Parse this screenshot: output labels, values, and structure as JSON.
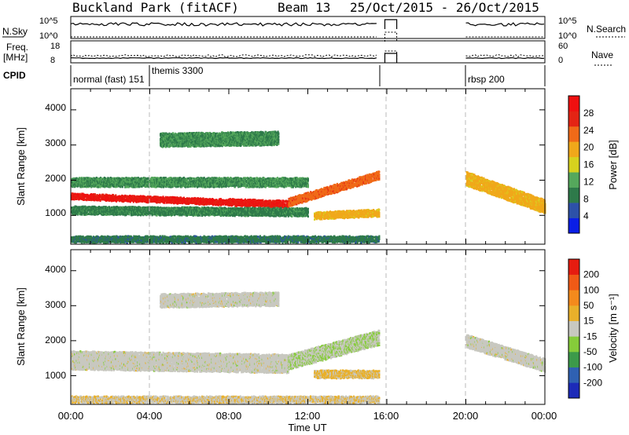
{
  "header": {
    "site": "Buckland Park (fitACF)",
    "beam": "Beam 13",
    "dates": "25/Oct/2015 - 26/Oct/2015"
  },
  "strips": {
    "nsky_label": "N.Sky",
    "nsky_ticks": [
      "10^5",
      "10^0"
    ],
    "nsearch_label": "N.Search",
    "nsearch_ticks": [
      "10^5",
      "10^0"
    ],
    "freq_label_1": "Freq.",
    "freq_label_2": "[MHz]",
    "freq_ticks": [
      "18",
      "8"
    ],
    "nave_label": "Nave",
    "nave_ticks": [
      "60",
      "0"
    ],
    "cpid_label": "CPID",
    "cpid_segments": [
      {
        "text": "normal (fast) 151",
        "start_h": 0
      },
      {
        "text": "themis 3300",
        "start_h": 4
      },
      {
        "text": "rbsp 200",
        "start_h": 20
      }
    ]
  },
  "axes": {
    "ylabel": "Slant Range [km]",
    "yticks": [
      "1000",
      "2000",
      "3000",
      "4000"
    ],
    "xlabel": "Time UT",
    "xticks": [
      "00:00",
      "04:00",
      "08:00",
      "12:00",
      "16:00",
      "20:00",
      "00:00"
    ]
  },
  "colorbars": {
    "power_label": "Power [dB]",
    "power_ticks": [
      "4",
      "8",
      "12",
      "16",
      "20",
      "24",
      "28"
    ],
    "power_colors": [
      "#0a1ee6",
      "#2d51a8",
      "#2e7a4a",
      "#55a85c",
      "#d7d21e",
      "#f0a81a",
      "#f06a18",
      "#e42414",
      "#ef1010"
    ],
    "velocity_label": "Velocity [m s⁻¹]",
    "velocity_ticks": [
      "200",
      "100",
      "50",
      "15",
      "-15",
      "-50",
      "-100",
      "-200"
    ],
    "velocity_colors": [
      "#1c2ab8",
      "#2f61b2",
      "#3c9a4a",
      "#86cc3a",
      "#c8c8c0",
      "#e9b02a",
      "#f48a1c",
      "#f05a16",
      "#e61c10"
    ]
  },
  "chart_data": [
    {
      "type": "heatmap",
      "title": "Power [dB]",
      "xlabel": "Time UT",
      "ylabel": "Slant Range [km]",
      "xlim_hours": [
        0,
        24
      ],
      "ylim_km": [
        180,
        4600
      ],
      "colorbar_range": [
        0,
        30
      ],
      "data_gap_hours": [
        16.1,
        20.0
      ],
      "bands": [
        {
          "t0": 0.0,
          "t1": 8.0,
          "r0": 1550,
          "r1": 1380,
          "width": 170,
          "value": 27
        },
        {
          "t0": 8.0,
          "t1": 11.0,
          "r0": 1380,
          "r1": 1330,
          "width": 190,
          "value": 27
        },
        {
          "t0": 11.0,
          "t1": 15.6,
          "r0": 1380,
          "r1": 2150,
          "width": 230,
          "value": 22
        },
        {
          "t0": 0.0,
          "t1": 12.0,
          "r0": 1950,
          "r1": 1950,
          "width": 260,
          "value": 10
        },
        {
          "t0": 0.0,
          "t1": 12.0,
          "r0": 1150,
          "r1": 1100,
          "width": 230,
          "value": 9
        },
        {
          "t0": 12.3,
          "t1": 15.6,
          "r0": 1000,
          "r1": 1080,
          "width": 200,
          "value": 18
        },
        {
          "t0": 4.5,
          "t1": 10.5,
          "r0": 3150,
          "r1": 3200,
          "width": 380,
          "value": 10
        },
        {
          "t0": 20.0,
          "t1": 24.0,
          "r0": 2050,
          "r1": 1250,
          "width": 380,
          "value": 18
        },
        {
          "t0": 0.0,
          "t1": 15.6,
          "r0": 330,
          "r1": 330,
          "width": 180,
          "value": 8
        }
      ]
    },
    {
      "type": "heatmap",
      "title": "Velocity [m s⁻¹]",
      "xlabel": "Time UT",
      "ylabel": "Slant Range [km]",
      "xlim_hours": [
        0,
        24
      ],
      "ylim_km": [
        180,
        4600
      ],
      "colorbar_range": [
        -250,
        250
      ],
      "data_gap_hours": [
        16.1,
        20.0
      ],
      "bands": [
        {
          "t0": 0.0,
          "t1": 11.0,
          "r0": 1450,
          "r1": 1350,
          "width": 520,
          "value": 0
        },
        {
          "t0": 11.0,
          "t1": 15.6,
          "r0": 1400,
          "r1": 2100,
          "width": 420,
          "value": -20
        },
        {
          "t0": 12.3,
          "t1": 15.6,
          "r0": 1050,
          "r1": 1050,
          "width": 220,
          "value": 40
        },
        {
          "t0": 4.5,
          "t1": 10.5,
          "r0": 3150,
          "r1": 3200,
          "width": 380,
          "value": 0
        },
        {
          "t0": 20.0,
          "t1": 24.0,
          "r0": 2000,
          "r1": 1300,
          "width": 360,
          "value": 0
        },
        {
          "t0": 0.0,
          "t1": 15.6,
          "r0": 330,
          "r1": 330,
          "width": 180,
          "value": 20
        }
      ]
    }
  ]
}
